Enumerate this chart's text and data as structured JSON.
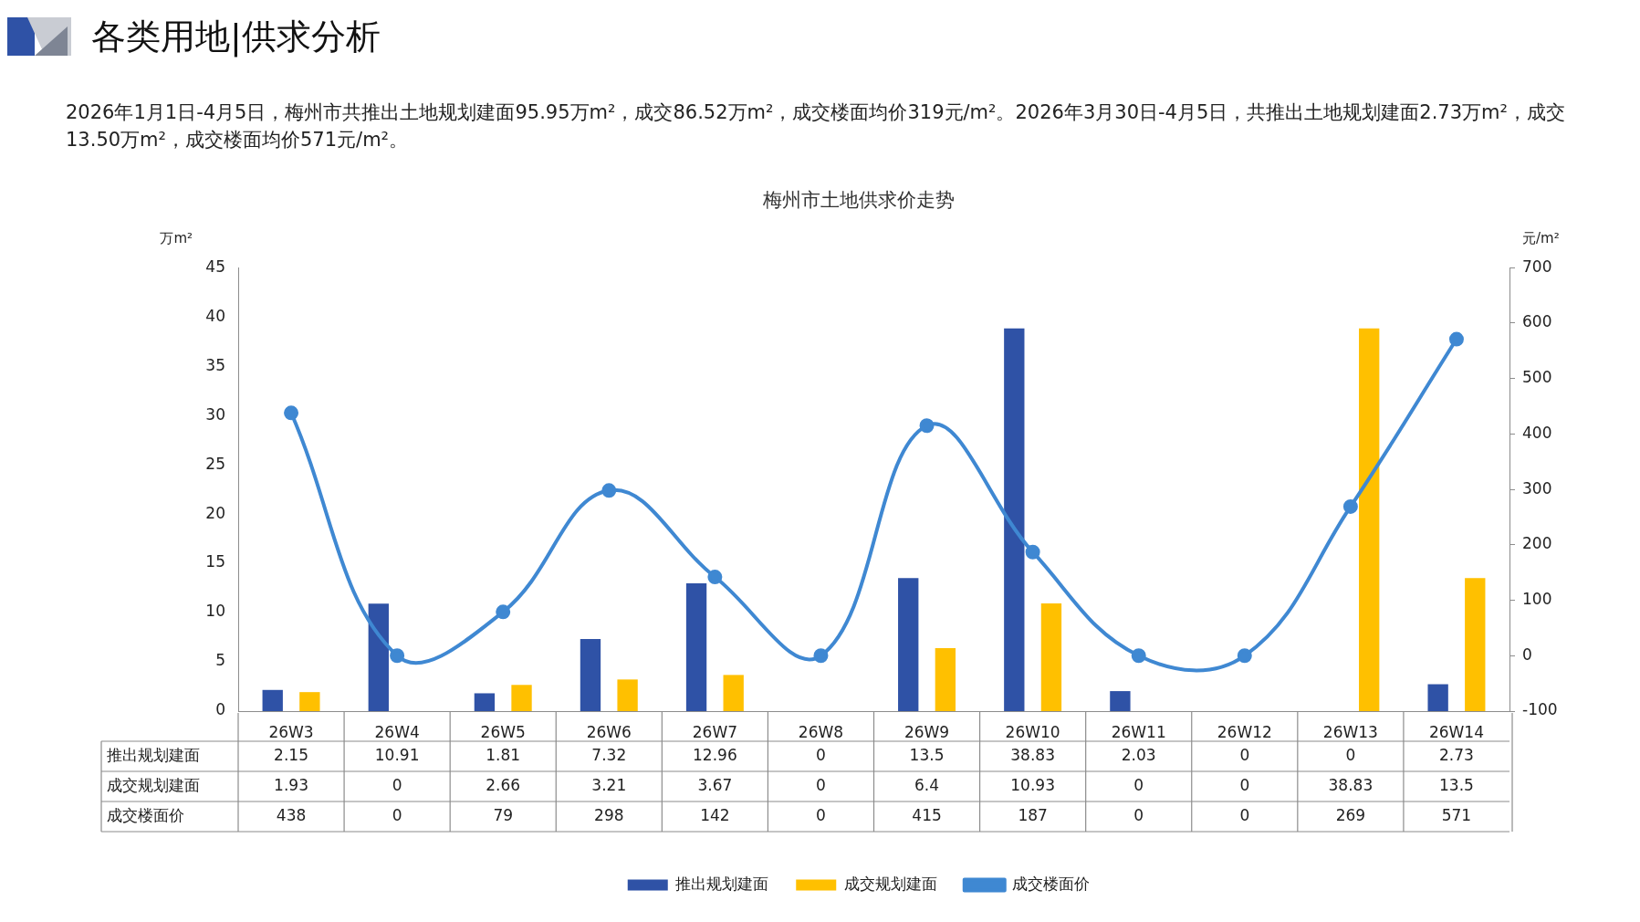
{
  "chart_data": {
    "type": "bar",
    "title": "梅州市土地供求价走势",
    "annotations": [
      "各类用地|供求分析",
      "2026年1月1日-4月5日，梅州市共推出土地规划建面95.95万m²，成交86.52万m²，成交楼面均价319元/m²。2026年3月30日-4月5日，共推出土地规划建面2.73万m²，成交13.50万m²，成交楼面均价571元/m²。"
    ],
    "ylabel": "万m²",
    "y2label": "元/m²",
    "categories": [
      "26W3",
      "26W4",
      "26W5",
      "26W6",
      "26W7",
      "26W8",
      "26W9",
      "26W10",
      "26W11",
      "26W12",
      "26W13",
      "26W14"
    ],
    "series": [
      {
        "name": "推出规划建面",
        "color": "#2f52a6",
        "values": [
          2.15,
          10.91,
          1.81,
          7.32,
          12.96,
          0,
          13.5,
          38.83,
          2.03,
          0,
          0,
          2.73
        ]
      },
      {
        "name": "成交规划建面",
        "color": "#ffc000",
        "values": [
          1.93,
          0,
          2.66,
          3.21,
          3.67,
          0,
          6.4,
          10.93,
          0,
          0,
          38.83,
          13.5
        ]
      },
      {
        "name": "成交楼面价",
        "type": "line",
        "axis": "y2",
        "color": "#3f88d2",
        "values": [
          438,
          0,
          79,
          298,
          142,
          0,
          415,
          187,
          0,
          0,
          269,
          571
        ]
      }
    ],
    "ylim": [
      0,
      45
    ],
    "yticks": [
      0,
      5,
      10,
      15,
      20,
      25,
      30,
      35,
      40,
      45
    ],
    "y2lim": [
      -100,
      700
    ],
    "y2ticks": [
      -100,
      0,
      100,
      200,
      300,
      400,
      500,
      600,
      700
    ],
    "grid": false,
    "legend": "bottom",
    "data_labels": true,
    "marker": "circle",
    "line_style": "solid"
  }
}
